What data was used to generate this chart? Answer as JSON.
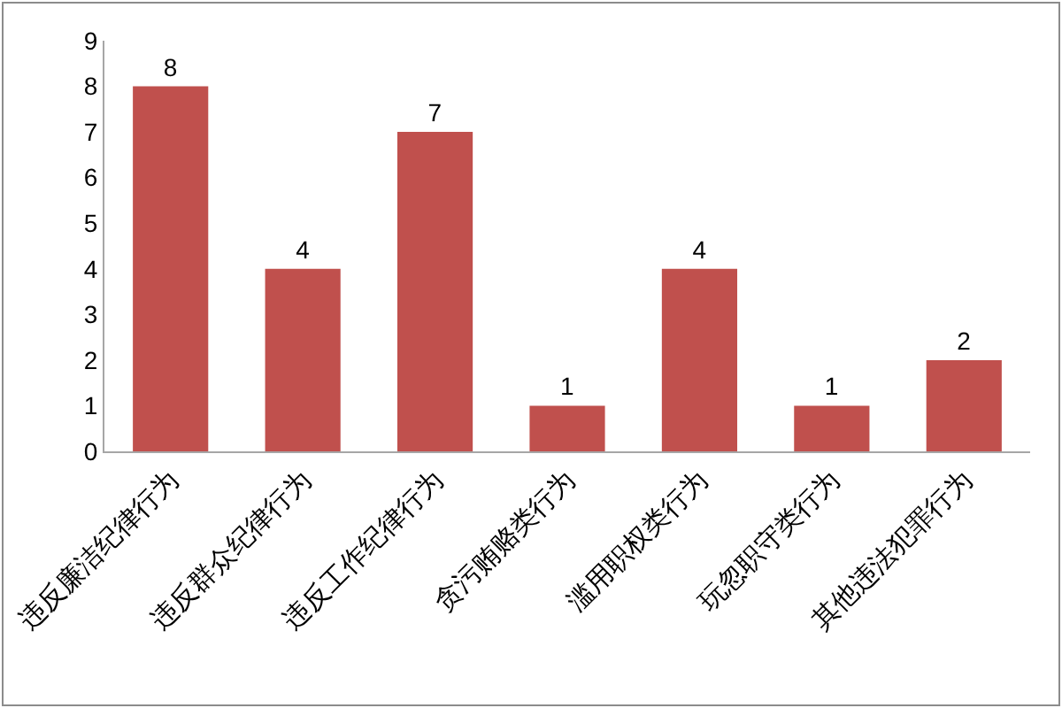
{
  "chart_data": {
    "type": "bar",
    "categories": [
      "违反廉洁纪律行为",
      "违反群众纪律行为",
      "违反工作纪律行为",
      "贪污贿赂类行为",
      "滥用职权类行为",
      "玩忽职守类行为",
      "其他违法犯罪行为"
    ],
    "values": [
      8,
      4,
      7,
      1,
      4,
      1,
      2
    ],
    "color": "#c0504d",
    "ylim": [
      0,
      9
    ],
    "yticks": [
      0,
      1,
      2,
      3,
      4,
      5,
      6,
      7,
      8,
      9
    ],
    "grid": false,
    "data_labels": true
  }
}
